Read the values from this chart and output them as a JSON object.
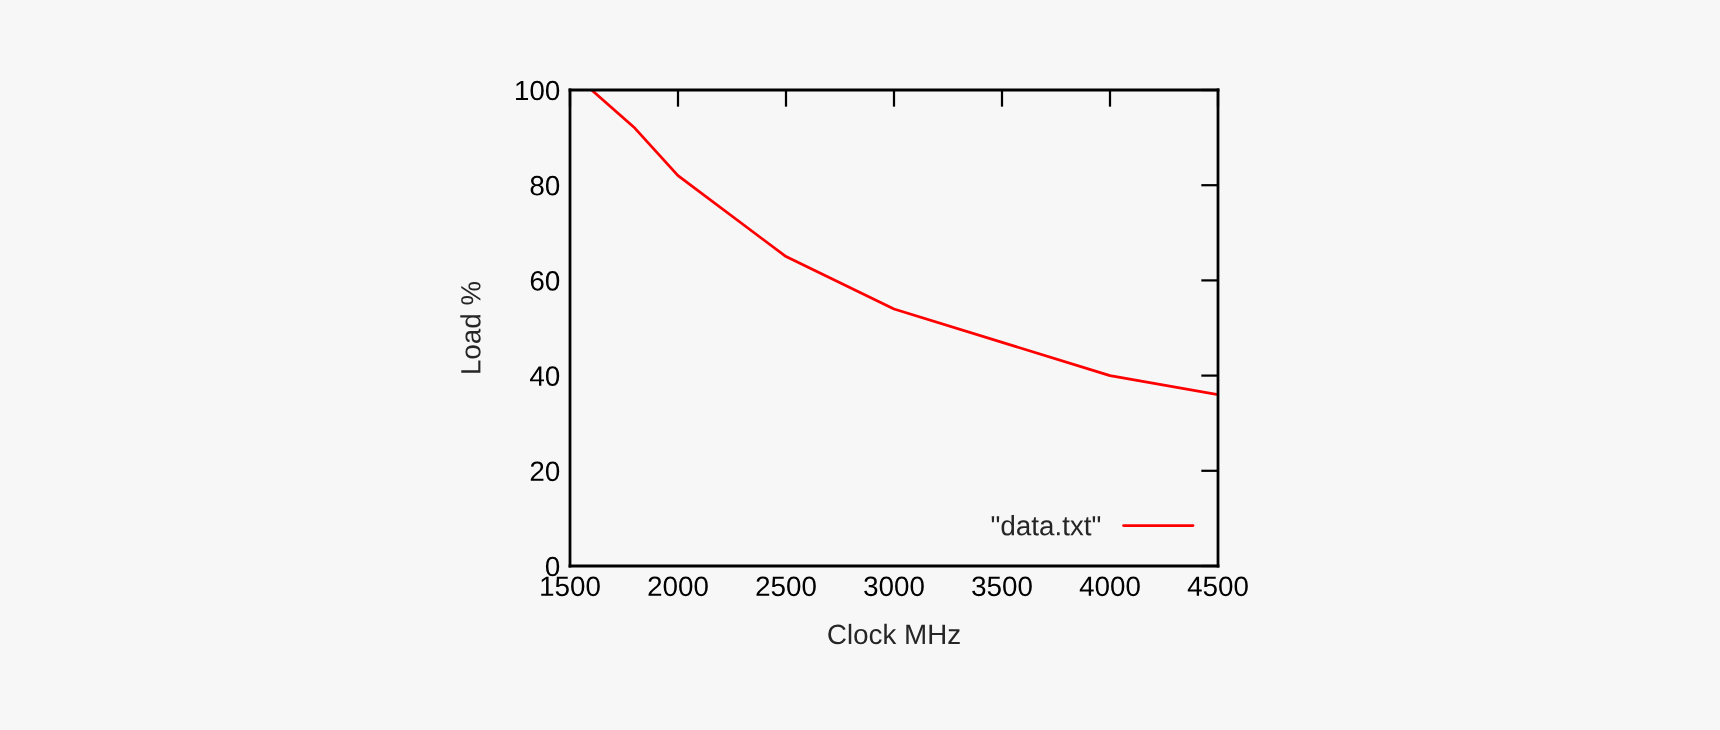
{
  "chart_data": {
    "type": "line",
    "xlabel": "Clock MHz",
    "ylabel": "Load %",
    "x": [
      1600,
      1800,
      2000,
      2500,
      3000,
      4000,
      4500
    ],
    "series": [
      {
        "name": "\"data.txt\"",
        "color": "#ff0000",
        "values": [
          100,
          92,
          82,
          65,
          54,
          40,
          36
        ]
      }
    ],
    "xlim": [
      1500,
      4500
    ],
    "xticks": [
      1500,
      2000,
      2500,
      3000,
      3500,
      4000,
      4500
    ],
    "ylim": [
      0,
      100
    ],
    "yticks": [
      0,
      20,
      40,
      60,
      80,
      100
    ],
    "grid": false,
    "legend": "bottom right",
    "marker": "none",
    "line_style": "solid"
  }
}
